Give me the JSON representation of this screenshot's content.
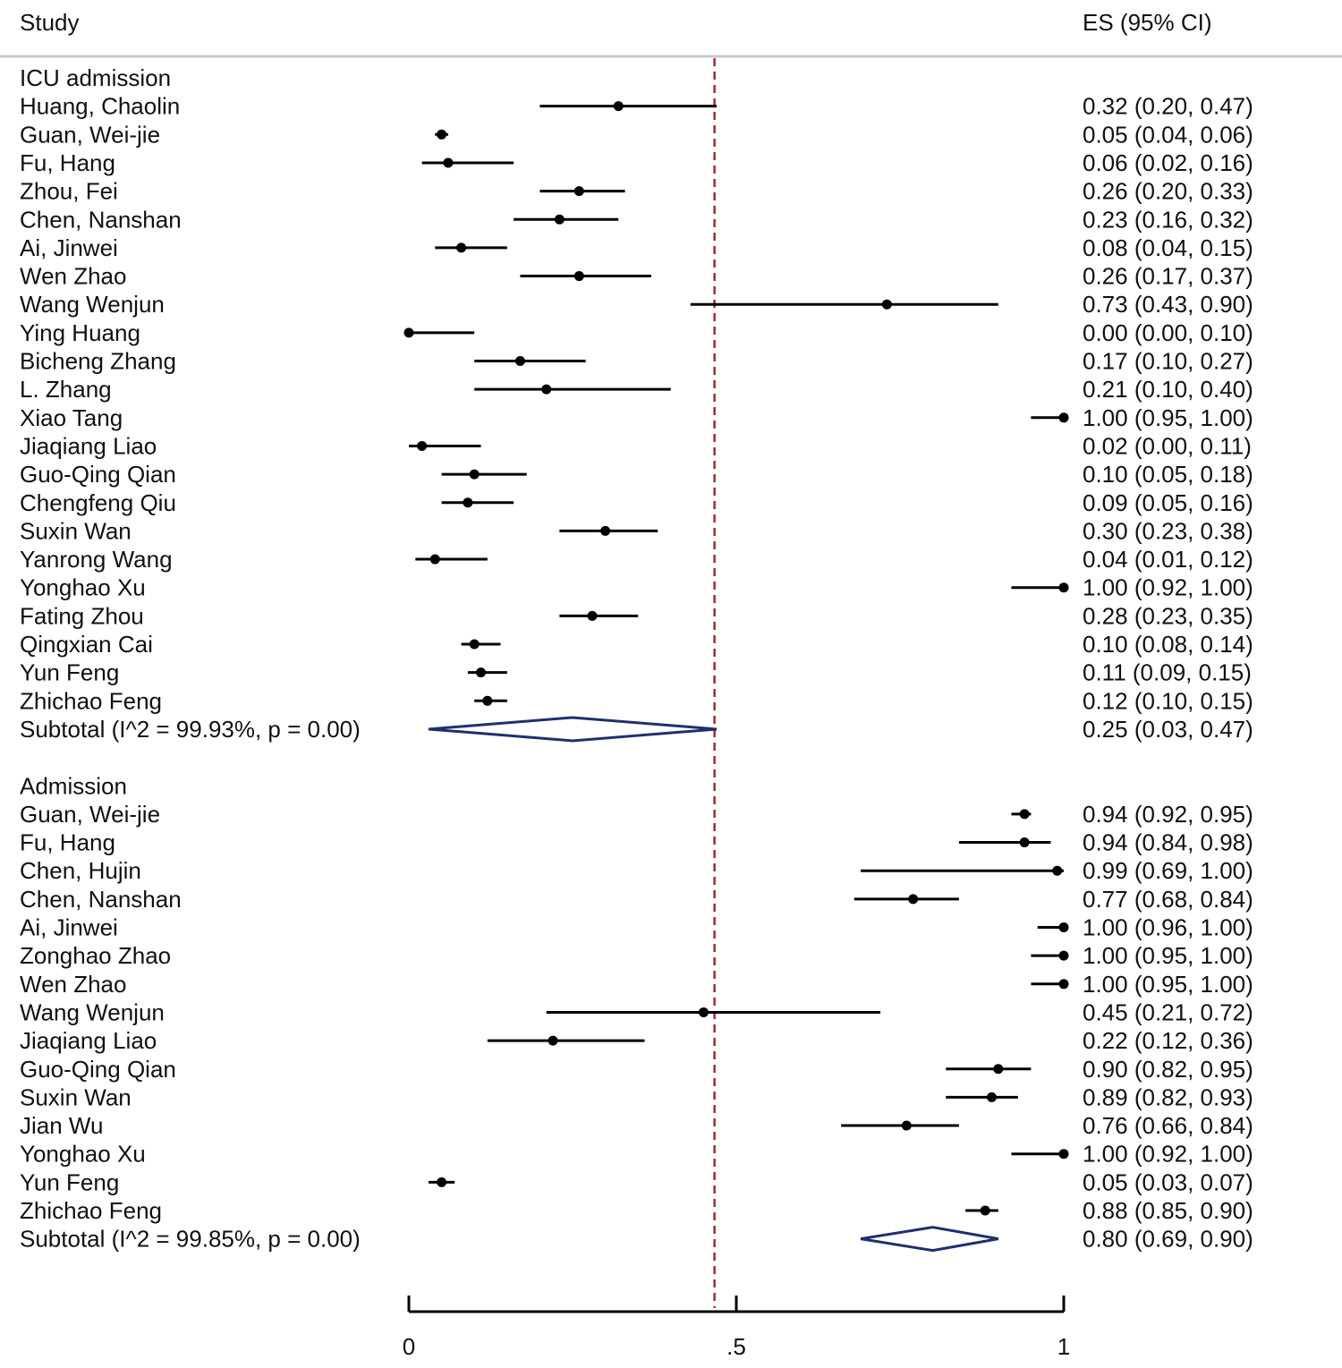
{
  "header": {
    "study_label": "Study",
    "es_label": "ES (95% CI)"
  },
  "chart_data": {
    "type": "forest",
    "reference_line": 0.4667,
    "xlim": [
      0,
      1
    ],
    "xticks": [
      {
        "value": 0,
        "label": "0"
      },
      {
        "value": 0.5,
        "label": ".5"
      },
      {
        "value": 1,
        "label": "1"
      }
    ],
    "colors": {
      "ci_line": "#000000",
      "point": "#000000",
      "diamond": "#1f2f6e",
      "reference_line": "#a52a2a",
      "divider": "#c8c8c8"
    },
    "groups": [
      {
        "title": "ICU admission",
        "studies": [
          {
            "study": "Huang, Chaolin",
            "es": 0.32,
            "lo": 0.2,
            "hi": 0.47,
            "es_text": "0.32 (0.20, 0.47)"
          },
          {
            "study": "Guan, Wei-jie",
            "es": 0.05,
            "lo": 0.04,
            "hi": 0.06,
            "es_text": "0.05 (0.04, 0.06)"
          },
          {
            "study": "Fu, Hang",
            "es": 0.06,
            "lo": 0.02,
            "hi": 0.16,
            "es_text": "0.06 (0.02, 0.16)"
          },
          {
            "study": "Zhou, Fei",
            "es": 0.26,
            "lo": 0.2,
            "hi": 0.33,
            "es_text": "0.26 (0.20, 0.33)"
          },
          {
            "study": "Chen, Nanshan",
            "es": 0.23,
            "lo": 0.16,
            "hi": 0.32,
            "es_text": "0.23 (0.16, 0.32)"
          },
          {
            "study": "Ai, Jinwei",
            "es": 0.08,
            "lo": 0.04,
            "hi": 0.15,
            "es_text": "0.08 (0.04, 0.15)"
          },
          {
            "study": "Wen Zhao",
            "es": 0.26,
            "lo": 0.17,
            "hi": 0.37,
            "es_text": "0.26 (0.17, 0.37)"
          },
          {
            "study": "Wang Wenjun",
            "es": 0.73,
            "lo": 0.43,
            "hi": 0.9,
            "es_text": "0.73 (0.43, 0.90)"
          },
          {
            "study": "Ying Huang",
            "es": 0.0,
            "lo": 0.0,
            "hi": 0.1,
            "es_text": "0.00 (0.00, 0.10)"
          },
          {
            "study": "Bicheng Zhang",
            "es": 0.17,
            "lo": 0.1,
            "hi": 0.27,
            "es_text": "0.17 (0.10, 0.27)"
          },
          {
            "study": "L. Zhang",
            "es": 0.21,
            "lo": 0.1,
            "hi": 0.4,
            "es_text": "0.21 (0.10, 0.40)"
          },
          {
            "study": "Xiao Tang",
            "es": 1.0,
            "lo": 0.95,
            "hi": 1.0,
            "es_text": "1.00 (0.95, 1.00)"
          },
          {
            "study": "Jiaqiang Liao",
            "es": 0.02,
            "lo": 0.0,
            "hi": 0.11,
            "es_text": "0.02 (0.00, 0.11)"
          },
          {
            "study": "Guo-Qing Qian",
            "es": 0.1,
            "lo": 0.05,
            "hi": 0.18,
            "es_text": "0.10 (0.05, 0.18)"
          },
          {
            "study": "Chengfeng Qiu",
            "es": 0.09,
            "lo": 0.05,
            "hi": 0.16,
            "es_text": "0.09 (0.05, 0.16)"
          },
          {
            "study": "Suxin Wan",
            "es": 0.3,
            "lo": 0.23,
            "hi": 0.38,
            "es_text": "0.30 (0.23, 0.38)"
          },
          {
            "study": "Yanrong Wang",
            "es": 0.04,
            "lo": 0.01,
            "hi": 0.12,
            "es_text": "0.04 (0.01, 0.12)"
          },
          {
            "study": "Yonghao Xu",
            "es": 1.0,
            "lo": 0.92,
            "hi": 1.0,
            "es_text": "1.00 (0.92, 1.00)"
          },
          {
            "study": "Fating Zhou",
            "es": 0.28,
            "lo": 0.23,
            "hi": 0.35,
            "es_text": "0.28 (0.23, 0.35)"
          },
          {
            "study": "Qingxian Cai",
            "es": 0.1,
            "lo": 0.08,
            "hi": 0.14,
            "es_text": "0.10 (0.08, 0.14)"
          },
          {
            "study": "Yun Feng",
            "es": 0.11,
            "lo": 0.09,
            "hi": 0.15,
            "es_text": "0.11 (0.09, 0.15)"
          },
          {
            "study": "Zhichao Feng",
            "es": 0.12,
            "lo": 0.1,
            "hi": 0.15,
            "es_text": "0.12 (0.10, 0.15)"
          }
        ],
        "subtotal": {
          "label": "Subtotal  (I^2 = 99.93%, p = 0.00)",
          "es": 0.25,
          "lo": 0.03,
          "hi": 0.47,
          "es_text": "0.25 (0.03, 0.47)"
        }
      },
      {
        "title": "Admission",
        "studies": [
          {
            "study": "Guan, Wei-jie",
            "es": 0.94,
            "lo": 0.92,
            "hi": 0.95,
            "es_text": "0.94 (0.92, 0.95)"
          },
          {
            "study": "Fu, Hang",
            "es": 0.94,
            "lo": 0.84,
            "hi": 0.98,
            "es_text": "0.94 (0.84, 0.98)"
          },
          {
            "study": "Chen, Hujin",
            "es": 0.99,
            "lo": 0.69,
            "hi": 1.0,
            "es_text": "0.99 (0.69, 1.00)"
          },
          {
            "study": "Chen, Nanshan",
            "es": 0.77,
            "lo": 0.68,
            "hi": 0.84,
            "es_text": "0.77 (0.68, 0.84)"
          },
          {
            "study": "Ai, Jinwei",
            "es": 1.0,
            "lo": 0.96,
            "hi": 1.0,
            "es_text": "1.00 (0.96, 1.00)"
          },
          {
            "study": "Zonghao Zhao",
            "es": 1.0,
            "lo": 0.95,
            "hi": 1.0,
            "es_text": "1.00 (0.95, 1.00)"
          },
          {
            "study": "Wen Zhao",
            "es": 1.0,
            "lo": 0.95,
            "hi": 1.0,
            "es_text": "1.00 (0.95, 1.00)"
          },
          {
            "study": "Wang Wenjun",
            "es": 0.45,
            "lo": 0.21,
            "hi": 0.72,
            "es_text": "0.45 (0.21, 0.72)"
          },
          {
            "study": "Jiaqiang Liao",
            "es": 0.22,
            "lo": 0.12,
            "hi": 0.36,
            "es_text": "0.22 (0.12, 0.36)"
          },
          {
            "study": "Guo-Qing Qian",
            "es": 0.9,
            "lo": 0.82,
            "hi": 0.95,
            "es_text": "0.90 (0.82, 0.95)"
          },
          {
            "study": "Suxin Wan",
            "es": 0.89,
            "lo": 0.82,
            "hi": 0.93,
            "es_text": "0.89 (0.82, 0.93)"
          },
          {
            "study": "Jian Wu",
            "es": 0.76,
            "lo": 0.66,
            "hi": 0.84,
            "es_text": "0.76 (0.66, 0.84)"
          },
          {
            "study": "Yonghao Xu",
            "es": 1.0,
            "lo": 0.92,
            "hi": 1.0,
            "es_text": "1.00 (0.92, 1.00)"
          },
          {
            "study": "Yun Feng",
            "es": 0.05,
            "lo": 0.03,
            "hi": 0.07,
            "es_text": "0.05 (0.03, 0.07)"
          },
          {
            "study": "Zhichao Feng",
            "es": 0.88,
            "lo": 0.85,
            "hi": 0.9,
            "es_text": "0.88 (0.85, 0.90)"
          }
        ],
        "subtotal": {
          "label": "Subtotal  (I^2 = 99.85%, p = 0.00)",
          "es": 0.8,
          "lo": 0.69,
          "hi": 0.9,
          "es_text": "0.80 (0.69, 0.90)"
        }
      }
    ]
  }
}
